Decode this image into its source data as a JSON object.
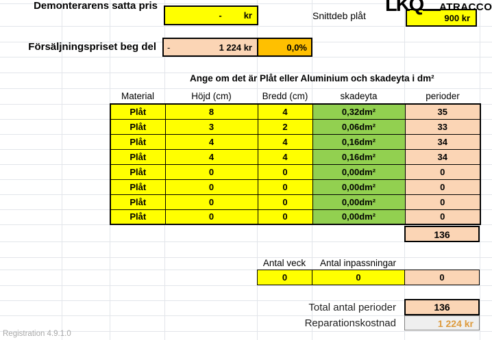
{
  "header": {
    "demonterarens_label": "Demonterarens satta pris",
    "demonterarens_value": "-",
    "demonterarens_unit": "kr",
    "snittdeb_label": "Snittdeb plåt",
    "snittdeb_value": "900 kr",
    "logo_primary": "LKQ",
    "logo_secondary": "ATRACCO",
    "forsaljning_label": "Försäljningspriset beg del",
    "forsaljning_dash": "-",
    "forsaljning_value": "1 224 kr",
    "forsaljning_percent": "0,0%"
  },
  "table": {
    "title": "Ange om det är Plåt eller Aluminium och skadeyta i dm²",
    "columns": [
      "Material",
      "Höjd (cm)",
      "Bredd (cm)",
      "skadeyta",
      "perioder"
    ],
    "rows": [
      {
        "material": "Plåt",
        "hojd": "8",
        "bredd": "4",
        "skadeyta": "0,32dm²",
        "perioder": "35"
      },
      {
        "material": "Plåt",
        "hojd": "3",
        "bredd": "2",
        "skadeyta": "0,06dm²",
        "perioder": "33"
      },
      {
        "material": "Plåt",
        "hojd": "4",
        "bredd": "4",
        "skadeyta": "0,16dm²",
        "perioder": "34"
      },
      {
        "material": "Plåt",
        "hojd": "4",
        "bredd": "4",
        "skadeyta": "0,16dm²",
        "perioder": "34"
      },
      {
        "material": "Plåt",
        "hojd": "0",
        "bredd": "0",
        "skadeyta": "0,00dm²",
        "perioder": "0"
      },
      {
        "material": "Plåt",
        "hojd": "0",
        "bredd": "0",
        "skadeyta": "0,00dm²",
        "perioder": "0"
      },
      {
        "material": "Plåt",
        "hojd": "0",
        "bredd": "0",
        "skadeyta": "0,00dm²",
        "perioder": "0"
      },
      {
        "material": "Plåt",
        "hojd": "0",
        "bredd": "0",
        "skadeyta": "0,00dm²",
        "perioder": "0"
      }
    ],
    "perioder_sum": "136"
  },
  "veck": {
    "veck_label": "Antal veck",
    "inpassningar_label": "Antal inpassningar",
    "veck_value": "0",
    "inpassningar_value": "0",
    "result_value": "0"
  },
  "totals": {
    "total_perioder_label": "Total antal perioder",
    "total_perioder_value": "136",
    "reparationskostnad_label": "Reparationskostnad",
    "reparationskostnad_value": "1 224 kr"
  },
  "footer": {
    "version": "Registration 4.9.1.0"
  },
  "colors": {
    "input_yellow": "#FFFF00",
    "computed_peach": "#FBD5B5",
    "percent_orange": "#FFC000",
    "area_green": "#92D050",
    "cost_text_orange": "#DD9A3C"
  }
}
